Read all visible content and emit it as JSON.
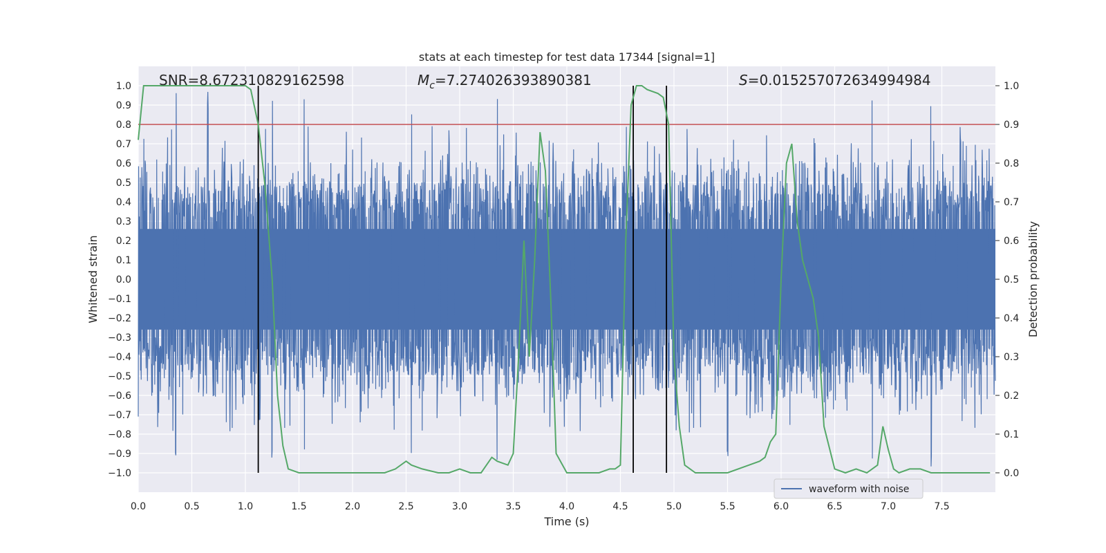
{
  "chart_data": {
    "type": "line",
    "title": "stats at each timestep for test data 17344 [signal=1]",
    "xlabel": "Time (s)",
    "ylabel_left": "Whitened strain",
    "ylabel_right": "Detection probability",
    "xlim": [
      0,
      8
    ],
    "ylim_left": [
      -1.1,
      1.1
    ],
    "ylim_right": [
      -0.05,
      1.05
    ],
    "x_ticks": [
      0.0,
      0.5,
      1.0,
      1.5,
      2.0,
      2.5,
      3.0,
      3.5,
      4.0,
      4.5,
      5.0,
      5.5,
      6.0,
      6.5,
      7.0,
      7.5
    ],
    "x_tick_labels": [
      "0.0",
      "0.5",
      "1.0",
      "1.5",
      "2.0",
      "2.5",
      "3.0",
      "3.5",
      "4.0",
      "4.5",
      "5.0",
      "5.5",
      "6.0",
      "6.5",
      "7.0",
      "7.5"
    ],
    "y_ticks_left": [
      1.0,
      0.9,
      0.8,
      0.7,
      0.6,
      0.5,
      0.4,
      0.3,
      0.2,
      0.1,
      0.0,
      -0.1,
      -0.2,
      -0.3,
      -0.4,
      -0.5,
      -0.6,
      -0.7,
      -0.8,
      -0.9,
      -1.0
    ],
    "y_tick_labels_left": [
      "1.0",
      "0.9",
      "0.8",
      "0.7",
      "0.6",
      "0.5",
      "0.4",
      "0.3",
      "0.2",
      "0.1",
      "0.0",
      "−0.1",
      "−0.2",
      "−0.3",
      "−0.4",
      "−0.5",
      "−0.6",
      "−0.7",
      "−0.8",
      "−0.9",
      "−1.0"
    ],
    "y_ticks_right": [
      1.0,
      0.9,
      0.8,
      0.7,
      0.6,
      0.5,
      0.4,
      0.3,
      0.2,
      0.1,
      0.0
    ],
    "y_tick_labels_right": [
      "1.0",
      "0.9",
      "0.8",
      "0.7",
      "0.6",
      "0.5",
      "0.4",
      "0.3",
      "0.2",
      "0.1",
      "0.0"
    ],
    "grid": true,
    "annotations": {
      "snr": "SNR=8.672310829162598",
      "mc_symbol": "M",
      "mc_sub": "c",
      "mc_value": "=7.274026393890381",
      "s_symbol": "S",
      "s_value": "=0.015257072634994984"
    },
    "legend": {
      "position": "lower-right",
      "entries": [
        {
          "label": "waveform with noise",
          "color": "#4c72b0"
        }
      ]
    },
    "threshold": {
      "value": 0.9,
      "axis": "right",
      "color": "#c44e52"
    },
    "vlines": [
      1.12,
      4.62,
      4.93
    ],
    "waveform": {
      "color": "#4c72b0",
      "amplitude_envelope": [
        -0.8,
        0.8
      ],
      "peaks": [
        0.35,
        0.65,
        1.25,
        1.55,
        2.55,
        3.35,
        5.5,
        6.85,
        7.4
      ]
    },
    "probability_series": {
      "color": "#55a868",
      "x": [
        0.0,
        0.05,
        0.1,
        0.2,
        0.3,
        0.5,
        0.7,
        0.9,
        1.0,
        1.05,
        1.12,
        1.18,
        1.25,
        1.3,
        1.35,
        1.4,
        1.5,
        1.7,
        1.8,
        1.9,
        2.0,
        2.1,
        2.2,
        2.3,
        2.4,
        2.5,
        2.55,
        2.65,
        2.8,
        2.9,
        3.0,
        3.1,
        3.2,
        3.3,
        3.35,
        3.45,
        3.5,
        3.55,
        3.6,
        3.65,
        3.7,
        3.75,
        3.8,
        3.85,
        3.9,
        4.0,
        4.1,
        4.2,
        4.3,
        4.4,
        4.45,
        4.5,
        4.55,
        4.6,
        4.65,
        4.7,
        4.75,
        4.85,
        4.9,
        4.95,
        5.0,
        5.05,
        5.1,
        5.2,
        5.3,
        5.5,
        5.7,
        5.8,
        5.85,
        5.9,
        5.95,
        6.0,
        6.05,
        6.1,
        6.15,
        6.2,
        6.25,
        6.3,
        6.35,
        6.4,
        6.5,
        6.6,
        6.7,
        6.8,
        6.9,
        6.95,
        7.0,
        7.05,
        7.1,
        7.2,
        7.3,
        7.4,
        7.6,
        7.8,
        7.95
      ],
      "y": [
        0.86,
        1.0,
        1.0,
        1.0,
        1.0,
        1.0,
        1.0,
        1.0,
        1.0,
        0.99,
        0.9,
        0.75,
        0.5,
        0.2,
        0.07,
        0.01,
        0.0,
        0.0,
        0.0,
        0.0,
        0.0,
        0.0,
        0.0,
        0.0,
        0.01,
        0.03,
        0.02,
        0.01,
        0.0,
        0.0,
        0.01,
        0.0,
        0.0,
        0.04,
        0.03,
        0.02,
        0.05,
        0.3,
        0.6,
        0.3,
        0.55,
        0.88,
        0.78,
        0.45,
        0.05,
        0.0,
        0.0,
        0.0,
        0.0,
        0.01,
        0.01,
        0.02,
        0.6,
        0.95,
        1.0,
        1.0,
        0.99,
        0.98,
        0.97,
        0.9,
        0.3,
        0.12,
        0.02,
        0.0,
        0.0,
        0.0,
        0.02,
        0.03,
        0.04,
        0.08,
        0.1,
        0.5,
        0.8,
        0.85,
        0.65,
        0.55,
        0.5,
        0.45,
        0.35,
        0.12,
        0.01,
        0.0,
        0.01,
        0.0,
        0.02,
        0.12,
        0.06,
        0.01,
        0.0,
        0.01,
        0.01,
        0.0,
        0.0,
        0.0,
        0.0
      ]
    }
  }
}
